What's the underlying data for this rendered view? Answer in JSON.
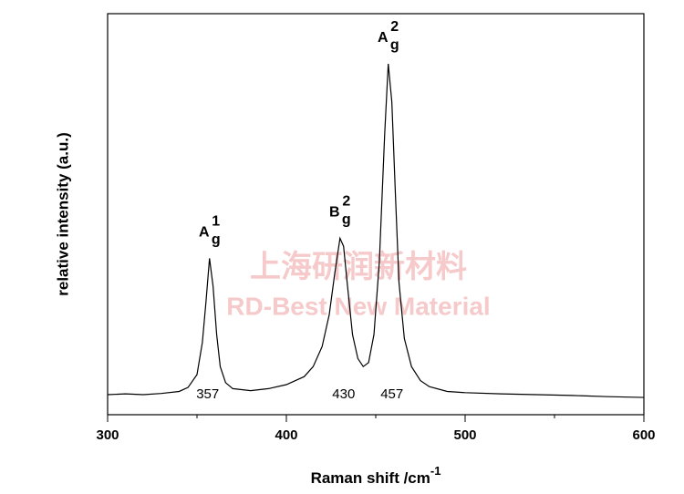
{
  "chart_data": {
    "type": "line",
    "ylabel": "relative intensity (a.u.)",
    "xlabel": "Raman shift /cm",
    "xlabel_sup": "-1",
    "xlim": [
      300,
      600
    ],
    "xticks": [
      300,
      400,
      500,
      600
    ],
    "xminorticks": [
      350,
      450,
      550
    ],
    "ylim": [
      0,
      1
    ],
    "x": [
      300,
      310,
      320,
      330,
      340,
      345,
      350,
      353,
      355,
      357,
      359,
      361,
      363,
      366,
      370,
      380,
      390,
      400,
      410,
      415,
      420,
      424,
      427,
      430,
      432,
      434,
      437,
      440,
      443,
      446,
      449,
      452,
      455,
      457,
      459,
      461,
      463,
      466,
      470,
      475,
      480,
      490,
      500,
      520,
      540,
      560,
      580,
      600
    ],
    "series": [
      {
        "color": "#000000",
        "values": [
          0.05,
          0.052,
          0.05,
          0.053,
          0.058,
          0.068,
          0.1,
          0.18,
          0.28,
          0.39,
          0.32,
          0.2,
          0.12,
          0.08,
          0.065,
          0.06,
          0.065,
          0.075,
          0.095,
          0.12,
          0.17,
          0.25,
          0.35,
          0.44,
          0.42,
          0.33,
          0.2,
          0.14,
          0.12,
          0.13,
          0.2,
          0.38,
          0.7,
          0.875,
          0.78,
          0.55,
          0.33,
          0.19,
          0.12,
          0.085,
          0.07,
          0.058,
          0.055,
          0.052,
          0.05,
          0.048,
          0.045,
          0.043
        ]
      }
    ],
    "peak_positions": [
      357,
      430,
      457
    ],
    "peak_labels": [
      {
        "text": "A",
        "sub": "g",
        "sup": "1"
      },
      {
        "text": "B",
        "sub": "g",
        "sup": "2"
      },
      {
        "text": "A",
        "sub": "g",
        "sup": "2"
      }
    ],
    "watermark": [
      "上海研润新材料",
      "RD-Best New Material"
    ]
  }
}
